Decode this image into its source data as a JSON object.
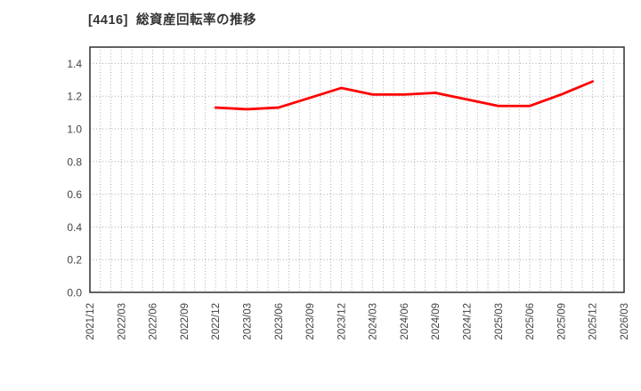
{
  "title": "[4416]  総資産回転率の推移",
  "style": {
    "background": "#ffffff",
    "title_color": "#333333",
    "line_color": "#ff0000",
    "grid_color": "#aaaaaa",
    "frame_color": "#2f2f2f",
    "tick_label_color": "#444444"
  },
  "chart_data": {
    "type": "line",
    "title": "[4416]  総資産回転率の推移",
    "x_labels": [
      "2021/12",
      "2022/03",
      "2022/06",
      "2022/09",
      "2022/12",
      "2023/03",
      "2023/06",
      "2023/09",
      "2023/12",
      "2024/03",
      "2024/06",
      "2024/09",
      "2024/12",
      "2025/03",
      "2025/06",
      "2025/09",
      "2025/12",
      "2026/03"
    ],
    "x_minor_divisions_per_interval": 3,
    "ylim": [
      0,
      1.5
    ],
    "ytick_labels": [
      "0.0",
      "0.2",
      "0.4",
      "0.6",
      "0.8",
      "1.0",
      "1.2",
      "1.4"
    ],
    "grid": true,
    "legend_position": "none",
    "series": [
      {
        "name": "総資産回転率",
        "color": "#ff0000",
        "start_index": 4,
        "x": [
          "2022/12",
          "2023/03",
          "2023/06",
          "2023/09",
          "2023/12",
          "2024/03",
          "2024/06",
          "2024/09",
          "2024/12",
          "2025/03",
          "2025/06",
          "2025/09",
          "2025/12"
        ],
        "values": [
          1.13,
          1.12,
          1.13,
          1.19,
          1.25,
          1.21,
          1.21,
          1.22,
          1.18,
          1.14,
          1.14,
          1.21,
          1.29
        ]
      }
    ]
  }
}
